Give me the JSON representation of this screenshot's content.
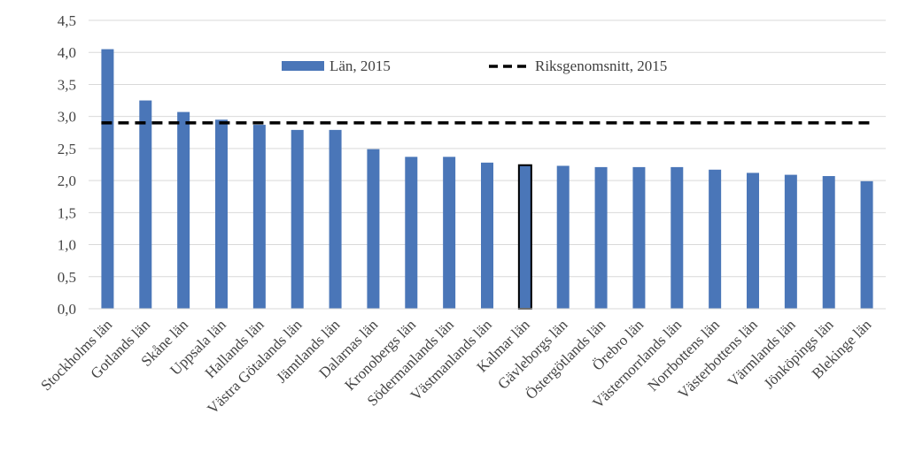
{
  "chart_data": {
    "type": "bar",
    "categories": [
      "Stockholms län",
      "Gotlands län",
      "Skåne län",
      "Uppsala län",
      "Hallands län",
      "Västra Götalands län",
      "Jämtlands län",
      "Dalarnas län",
      "Kronobergs län",
      "Södermanlands län",
      "Västmanlands län",
      "Kalmar län",
      "Gävleborgs län",
      "Östergötlands län",
      "Örebro län",
      "Västernorrlands län",
      "Norrbottens län",
      "Västerbottens län",
      "Värmlands län",
      "Jönköpings län",
      "Blekinge län"
    ],
    "series": [
      {
        "name": "Län, 2015",
        "values": [
          4.05,
          3.25,
          3.07,
          2.95,
          2.87,
          2.79,
          2.79,
          2.49,
          2.37,
          2.37,
          2.28,
          2.24,
          2.23,
          2.21,
          2.21,
          2.21,
          2.17,
          2.12,
          2.09,
          2.07,
          1.99
        ],
        "color": "#4A76B8"
      },
      {
        "name": "Riksgenomsnitt, 2015",
        "type": "reference-line",
        "value": 2.9,
        "color": "#000000",
        "style": "dashed"
      }
    ],
    "highlight_category": "Kalmar län",
    "highlight_outline_color": "#000000",
    "ylim": [
      0,
      4.5
    ],
    "yticks": [
      "0,0",
      "0,5",
      "1,0",
      "1,5",
      "2,0",
      "2,5",
      "3,0",
      "3,5",
      "4,0",
      "4,5"
    ],
    "grid": true,
    "grid_color": "#D9D9D9",
    "legend": {
      "placement": "top-center",
      "entries": [
        "Län, 2015",
        "Riksgenomsnitt, 2015"
      ]
    },
    "title": "",
    "xlabel": "",
    "ylabel": ""
  }
}
